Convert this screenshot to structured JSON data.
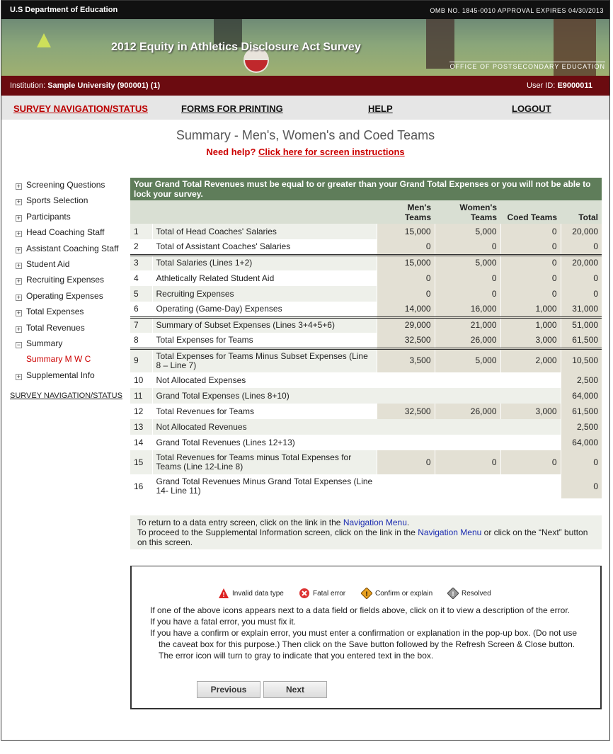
{
  "header": {
    "agency": "U.S Department of Education",
    "omb": "OMB NO. 1845-0010 APPROVAL EXPIRES 04/30/2013",
    "banner_title": "2012 Equity in Athletics Disclosure Act Survey",
    "office": "OFFICE OF POSTSECONDARY EDUCATION"
  },
  "user_bar": {
    "institution_label": "Institution:",
    "institution": "Sample University (900001) (1)",
    "user_label": "User ID:",
    "user_id": "E9000011"
  },
  "nav": [
    "SURVEY NAVIGATION/STATUS",
    "FORMS FOR PRINTING",
    "HELP",
    "LOGOUT"
  ],
  "page": {
    "title": "Summary - Men's, Women's and Coed Teams",
    "help_prefix": "Need help?",
    "help_link": "Click here for screen instructions"
  },
  "sidebar": {
    "items": [
      {
        "label": "Screening Questions",
        "expanded": false,
        "children": []
      },
      {
        "label": "Sports Selection",
        "expanded": false,
        "children": []
      },
      {
        "label": "Participants",
        "expanded": false,
        "children": []
      },
      {
        "label": "Head Coaching Staff",
        "expanded": false,
        "children": []
      },
      {
        "label": "Assistant Coaching Staff",
        "expanded": false,
        "children": []
      },
      {
        "label": "Student Aid",
        "expanded": false,
        "children": []
      },
      {
        "label": "Recruiting Expenses",
        "expanded": false,
        "children": []
      },
      {
        "label": "Operating Expenses",
        "expanded": false,
        "children": []
      },
      {
        "label": "Total Expenses",
        "expanded": false,
        "children": []
      },
      {
        "label": "Total Revenues",
        "expanded": false,
        "children": []
      },
      {
        "label": "Summary",
        "expanded": true,
        "children": [
          "Summary M W C"
        ]
      },
      {
        "label": "Supplemental Info",
        "expanded": false,
        "children": []
      }
    ],
    "bottom_link": "SURVEY NAVIGATION/STATUS"
  },
  "table": {
    "notice": "Your Grand Total Revenues must be equal to or greater than your Grand Total Expenses or you will not be able to lock your survey.",
    "headers": [
      "Men's Teams",
      "Women's Teams",
      "Coed Teams",
      "Total"
    ],
    "rows": [
      [
        "1",
        "Total of Head Coaches' Salaries",
        "15,000",
        "5,000",
        "0",
        "20,000"
      ],
      [
        "2",
        "Total of Assistant Coaches' Salaries",
        "0",
        "0",
        "0",
        "0"
      ],
      [
        "3",
        "Total Salaries (Lines 1+2)",
        "15,000",
        "5,000",
        "0",
        "20,000"
      ],
      [
        "4",
        "Athletically Related Student Aid",
        "0",
        "0",
        "0",
        "0"
      ],
      [
        "5",
        "Recruiting Expenses",
        "0",
        "0",
        "0",
        "0"
      ],
      [
        "6",
        "Operating (Game-Day) Expenses",
        "14,000",
        "16,000",
        "1,000",
        "31,000"
      ],
      [
        "7",
        "Summary of Subset Expenses (Lines 3+4+5+6)",
        "29,000",
        "21,000",
        "1,000",
        "51,000"
      ],
      [
        "8",
        "Total Expenses for Teams",
        "32,500",
        "26,000",
        "3,000",
        "61,500"
      ],
      [
        "9",
        "Total Expenses for Teams Minus Subset Expenses (Line 8 – Line 7)",
        "3,500",
        "5,000",
        "2,000",
        "10,500"
      ],
      [
        "10",
        "Not Allocated Expenses",
        null,
        null,
        null,
        "2,500"
      ],
      [
        "11",
        "Grand Total Expenses (Lines 8+10)",
        null,
        null,
        null,
        "64,000"
      ],
      [
        "12",
        "Total Revenues for Teams",
        "32,500",
        "26,000",
        "3,000",
        "61,500"
      ],
      [
        "13",
        "Not Allocated Revenues",
        null,
        null,
        null,
        "2,500"
      ],
      [
        "14",
        "Grand Total Revenues (Lines 12+13)",
        null,
        null,
        null,
        "64,000"
      ],
      [
        "15",
        "Total Revenues for Teams minus Total Expenses for Teams (Line 12-Line 8)",
        "0",
        "0",
        "0",
        "0"
      ],
      [
        "16",
        "Grand Total Revenues Minus Grand Total Expenses (Line 14- Line 11)",
        null,
        null,
        null,
        "0"
      ]
    ]
  },
  "notes": {
    "line1": [
      "To return to a data entry screen, click on the link in the",
      "Navigation Menu",
      "."
    ],
    "line2": [
      "To proceed to the Supplemental Information screen, click on the link in the",
      "Navigation Menu",
      "or click on the “Next” button on this screen."
    ]
  },
  "legend": [
    "Invalid data type",
    "Fatal error",
    "Confirm or explain",
    "Resolved"
  ],
  "instructions": [
    "If one of the above icons appears next to a data field or fields above, click on it to view a description of the error.",
    "If you have a fatal error, you must fix it.",
    "If you have a confirm or explain error, you must enter a confirmation or explanation in the pop-up box. (Do not use the caveat box for this purpose.) Then click on the Save button followed by the Refresh Screen & Close button. The error icon will turn to gray to indicate that you entered text in the box."
  ],
  "buttons": [
    "Previous",
    "Next"
  ]
}
